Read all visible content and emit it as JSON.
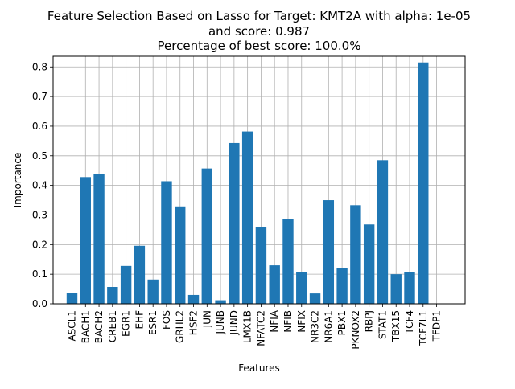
{
  "chart_data": {
    "type": "bar",
    "title_lines": [
      "Feature Selection Based on Lasso for Target: KMT2A with alpha: 1e-05",
      "and score: 0.987",
      "Percentage of best score: 100.0%"
    ],
    "xlabel": "Features",
    "ylabel": "Importance",
    "categories": [
      "ASCL1",
      "BACH1",
      "BACH2",
      "CREB1",
      "EGR1",
      "EHF",
      "ESR1",
      "FOS",
      "GRHL2",
      "HSF2",
      "JUN",
      "JUNB",
      "JUND",
      "LMX1B",
      "NFATC2",
      "NFIA",
      "NFIB",
      "NFIX",
      "NR3C2",
      "NR6A1",
      "PBX1",
      "PKNOX2",
      "RBPJ",
      "STAT1",
      "TBX15",
      "TCF4",
      "TCF7L1",
      "TFDP1"
    ],
    "values": [
      0.036,
      0.428,
      0.437,
      0.057,
      0.128,
      0.196,
      0.082,
      0.414,
      0.329,
      0.03,
      0.457,
      0.012,
      0.543,
      0.582,
      0.26,
      0.13,
      0.285,
      0.106,
      0.035,
      0.35,
      0.12,
      0.333,
      0.268,
      0.485,
      0.1,
      0.107,
      0.815,
      0.0
    ],
    "ylim": [
      0,
      0.836
    ],
    "yticks": [
      "0.0",
      "0.1",
      "0.2",
      "0.3",
      "0.4",
      "0.5",
      "0.6",
      "0.7",
      "0.8"
    ],
    "grid": true,
    "bar_color": "#1f77b4"
  }
}
